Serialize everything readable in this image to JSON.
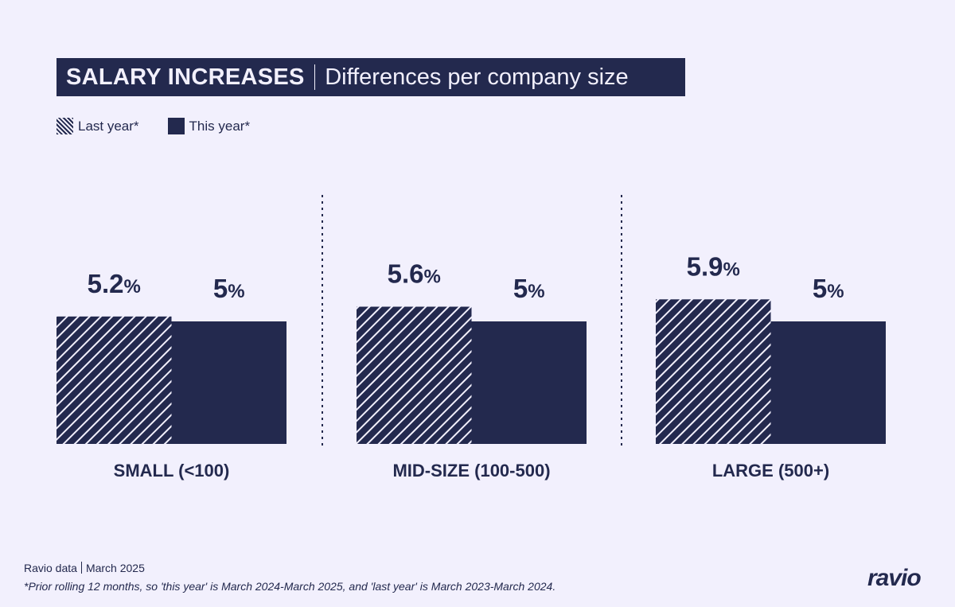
{
  "chart_data": {
    "type": "bar",
    "title": "SALARY INCREASES",
    "subtitle": "Differences per company size",
    "categories": [
      "SMALL (<100)",
      "MID-SIZE (100-500)",
      "LARGE (500+)"
    ],
    "series": [
      {
        "name": "Last year*",
        "values": [
          5.2,
          5.6,
          5.9
        ],
        "labels": [
          "5.2",
          "5.6",
          "5.9"
        ],
        "style": "hatched",
        "color": "#23294e"
      },
      {
        "name": "This year*",
        "values": [
          5,
          5,
          5
        ],
        "labels": [
          "5",
          "5",
          "5"
        ],
        "style": "solid",
        "color": "#23294e"
      }
    ],
    "value_suffix": "%",
    "ylim": [
      0,
      6
    ],
    "grid": false,
    "legend_position": "top-left",
    "category_separators": "dotted"
  },
  "footer": {
    "source": "Ravio data",
    "date": "March 2025",
    "note": "*Prior rolling 12 months, so 'this year' is March 2024-March 2025, and 'last year' is March 2023-March 2024."
  },
  "logo": "ravio",
  "colors": {
    "background": "#f2f0fd",
    "primary": "#23294e"
  }
}
